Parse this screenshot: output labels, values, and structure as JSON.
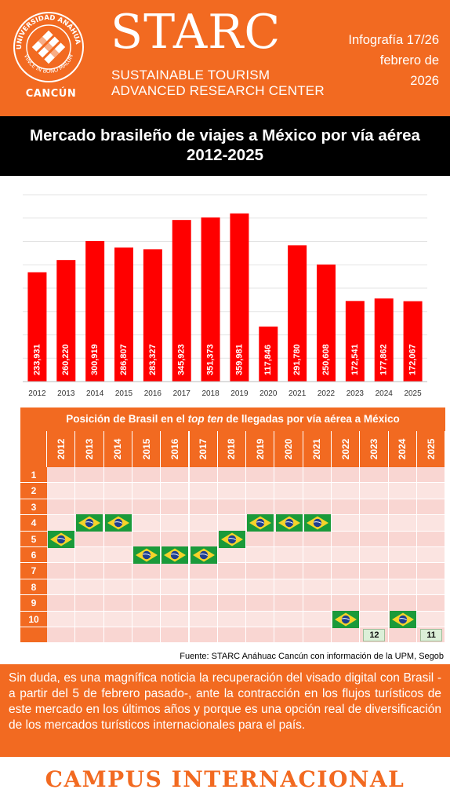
{
  "header": {
    "seal_text": "CANCÚN",
    "seal_arc_top": "UNIVERSIDAD ANÁHUAC",
    "seal_arc_bottom": "VINCE IN BONO MALUM",
    "brand_title": "STARC",
    "brand_sub_line1": "SUSTAINABLE TOURISM",
    "brand_sub_line2": "ADVANCED RESEARCH CENTER",
    "issue_line1": "Infografía 17/26",
    "issue_line2": "febrero de",
    "issue_line3": "2026",
    "accent_color": "#f26a21"
  },
  "main_title": "Mercado brasileño de viajes a México por vía aérea 2012-2025",
  "chart_data": {
    "type": "bar",
    "title": "",
    "xlabel": "",
    "ylabel": "",
    "categories": [
      "2012",
      "2013",
      "2014",
      "2015",
      "2016",
      "2017",
      "2018",
      "2019",
      "2020",
      "2021",
      "2022",
      "2023",
      "2024",
      "2025"
    ],
    "values": [
      233931,
      260220,
      300919,
      286807,
      283327,
      345923,
      351373,
      359981,
      117846,
      291780,
      250608,
      172541,
      177862,
      172067
    ],
    "value_labels": [
      "233,931",
      "260,220",
      "300,919",
      "286,807",
      "283,327",
      "345,923",
      "351,373",
      "359,981",
      "117,846",
      "291,780",
      "250,608",
      "172,541",
      "177,862",
      "172,067"
    ],
    "ylim": [
      0,
      400000
    ],
    "grid": true,
    "bar_color": "#ff0000"
  },
  "ranking": {
    "title_before": "Posición de Brasil en el ",
    "title_italic": "top ten",
    "title_after": " de llegadas por vía aérea a México",
    "years": [
      "2012",
      "2013",
      "2014",
      "2015",
      "2016",
      "2017",
      "2018",
      "2019",
      "2020",
      "2021",
      "2022",
      "2023",
      "2024",
      "2025"
    ],
    "rows": [
      "1",
      "2",
      "3",
      "4",
      "5",
      "6",
      "7",
      "8",
      "9",
      "10",
      ""
    ],
    "positions": [
      5,
      4,
      4,
      6,
      6,
      6,
      5,
      4,
      4,
      4,
      10,
      12,
      10,
      11
    ],
    "outside_labels": [
      "12",
      "11"
    ],
    "flag_icon": "brazil-flag-icon"
  },
  "source": "Fuente: STARC Anáhuac Cancún con información de la UPM, Segob",
  "body_text": "Sin duda, es una magnífica noticia la recuperación del visado digital con Brasil -a partir del 5 de febrero pasado-, ante la contracción en los flujos turísticos de este mercado en los últimos años y porque es una opción real de diversificación de los mercados turísticos internacionales para el país.",
  "footer": "CAMPUS INTERNACIONAL"
}
